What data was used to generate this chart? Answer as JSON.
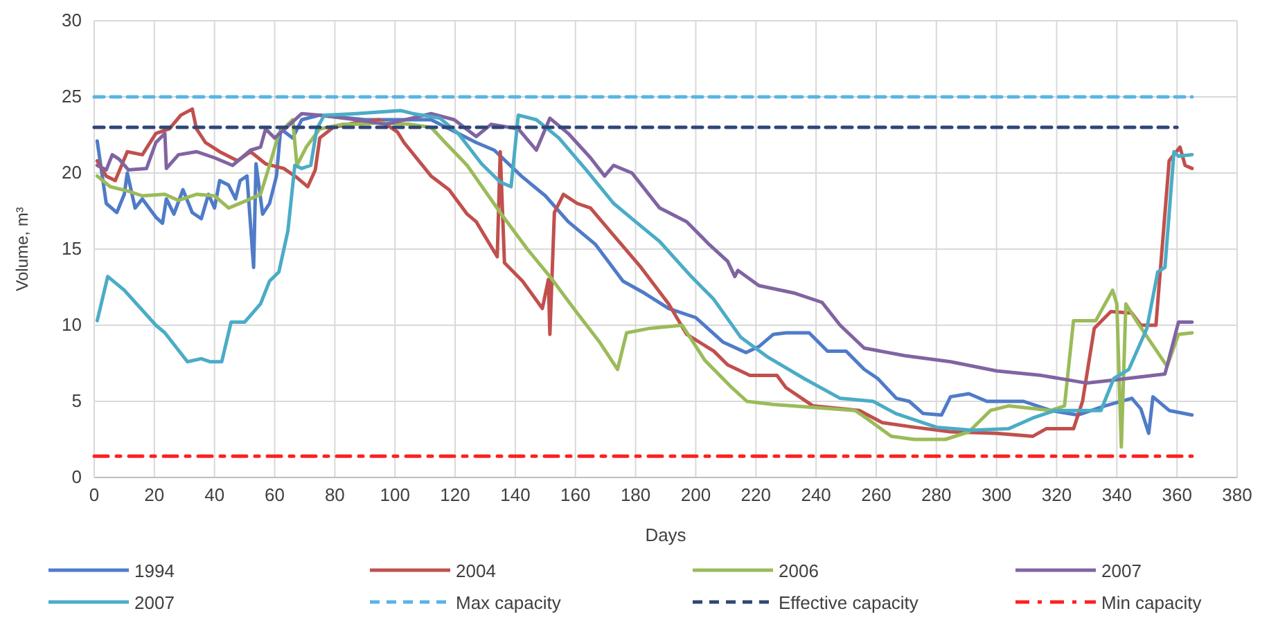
{
  "chart_data": {
    "type": "line",
    "xlabel": "Days",
    "ylabel": "Volume, m³",
    "xlim": [
      0,
      380
    ],
    "ylim": [
      0,
      30
    ],
    "xticks": [
      0,
      20,
      40,
      60,
      80,
      100,
      120,
      140,
      160,
      180,
      200,
      220,
      240,
      260,
      280,
      300,
      320,
      340,
      360,
      380
    ],
    "yticks": [
      0,
      5,
      10,
      15,
      20,
      25,
      30
    ],
    "grid": true,
    "legend": "bottom",
    "marker": "none",
    "series": [
      {
        "name": "1994",
        "color": "#4f7bc8",
        "line_style": "solid",
        "x": [
          1,
          4,
          7.5,
          10,
          11,
          13.6,
          16,
          20.5,
          22.7,
          24,
          26.5,
          29.5,
          32.6,
          35.6,
          38,
          40,
          41.7,
          44.7,
          47,
          48.5,
          50.8,
          53,
          53.8,
          56,
          58.3,
          60.6,
          62,
          66,
          69,
          75,
          90,
          112,
          121,
          127,
          133,
          142,
          150,
          157.6,
          166.7,
          175.8,
          183,
          191,
          200,
          209,
          216.7,
          221,
          225.8,
          230,
          237.7,
          243.8,
          250,
          256,
          260.5,
          266.7,
          271,
          275.6,
          281.7,
          284.7,
          290.8,
          296.8,
          309,
          318,
          327,
          336,
          345,
          348,
          350.6,
          352,
          357.4,
          365
        ],
        "values": [
          22.1,
          18,
          17.4,
          18.6,
          20,
          17.7,
          18.3,
          17.1,
          16.7,
          18.3,
          17.3,
          18.9,
          17.4,
          17,
          18.6,
          17.7,
          19.5,
          19.2,
          18.3,
          19.5,
          19.8,
          13.8,
          20.6,
          17.3,
          18,
          19.8,
          22.9,
          22.3,
          23.5,
          23.8,
          23.5,
          23.5,
          22.6,
          22,
          21.5,
          19.8,
          18.5,
          16.8,
          15.3,
          12.9,
          12.1,
          11.1,
          10.5,
          8.9,
          8.2,
          8.6,
          9.4,
          9.5,
          9.5,
          8.3,
          8.3,
          7.1,
          6.5,
          5.2,
          5,
          4.2,
          4.1,
          5.3,
          5.5,
          5,
          5,
          4.4,
          4.1,
          4.7,
          5.2,
          4.5,
          2.9,
          5.3,
          4.4,
          4.1
        ]
      },
      {
        "name": "2004",
        "color": "#c0504d",
        "line_style": "solid",
        "x": [
          1,
          4,
          7,
          11,
          16,
          20.5,
          25,
          28.8,
          32.6,
          34,
          37,
          41.7,
          47.7,
          52,
          57,
          63,
          67.4,
          71,
          73.5,
          75,
          79.5,
          87,
          94.7,
          100.8,
          103,
          112,
          118,
          124,
          127,
          134,
          135,
          136.4,
          142.4,
          149,
          151,
          151.5,
          153,
          156,
          160.6,
          165,
          172.7,
          181.8,
          191,
          197,
          206,
          210.6,
          218,
          227,
          230,
          239,
          254.4,
          262,
          272.6,
          284.7,
          300,
          312,
          316.5,
          325.6,
          328.6,
          332.5,
          338,
          345,
          348,
          353,
          357.4,
          361,
          362.7,
          365
        ],
        "values": [
          20.8,
          19.8,
          19.5,
          21.4,
          21.2,
          22.6,
          22.9,
          23.8,
          24.2,
          22.9,
          22,
          21.4,
          20.8,
          21.4,
          20.6,
          20.3,
          19.7,
          19.1,
          20.2,
          22.3,
          23,
          23.3,
          23.5,
          22.7,
          22,
          19.8,
          18.9,
          17.3,
          16.8,
          14.5,
          21.4,
          14.1,
          12.9,
          11.1,
          13,
          9.4,
          17.4,
          18.6,
          18,
          17.7,
          15.9,
          13.8,
          11.4,
          9.4,
          8.3,
          7.4,
          6.7,
          6.7,
          5.9,
          4.7,
          4.4,
          3.6,
          3.3,
          3,
          2.9,
          2.7,
          3.2,
          3.2,
          5,
          9.8,
          10.9,
          10.8,
          10,
          10,
          20.8,
          21.7,
          20.5,
          20.3
        ]
      },
      {
        "name": "2006",
        "color": "#9bbb59",
        "line_style": "solid",
        "x": [
          1,
          5.3,
          11.4,
          16,
          23.5,
          28,
          34,
          40,
          44.7,
          50.8,
          55.3,
          58.3,
          61.4,
          66,
          67.4,
          70.5,
          75,
          82.6,
          87,
          94.7,
          105,
          112,
          116.7,
          124,
          135,
          144,
          151.5,
          160.6,
          168,
          174,
          177,
          184.8,
          195.5,
          203,
          212,
          217,
          225.8,
          253,
          257.4,
          265,
          272.6,
          283,
          290.8,
          298,
          304,
          318,
          322.6,
          325.6,
          333,
          338.6,
          340,
          341.5,
          343,
          346.8,
          356.7,
          360.5,
          365
        ],
        "values": [
          19.8,
          19.1,
          18.8,
          18.5,
          18.6,
          18.2,
          18.6,
          18.5,
          17.7,
          18.2,
          18.6,
          20.5,
          22.6,
          23.5,
          20.5,
          21.7,
          22.9,
          23.2,
          23.2,
          23.3,
          23.2,
          23,
          22,
          20.5,
          17.4,
          15,
          13.2,
          10.8,
          8.9,
          7.1,
          9.5,
          9.8,
          10,
          7.7,
          5.9,
          5,
          4.8,
          4.4,
          3.8,
          2.7,
          2.5,
          2.5,
          3,
          4.4,
          4.7,
          4.4,
          4.7,
          10.3,
          10.3,
          12.3,
          11.4,
          2,
          11.4,
          10.2,
          7.3,
          9.4,
          9.5
        ]
      },
      {
        "name": "2007",
        "color": "#8064a2",
        "line_style": "solid",
        "x": [
          1,
          4,
          6,
          8.3,
          11.4,
          17.4,
          20.5,
          23.5,
          24,
          28,
          34,
          40,
          46,
          52,
          55.3,
          57,
          60,
          64,
          69,
          75,
          87,
          97,
          112,
          119.7,
          127,
          132,
          141,
          147,
          151.5,
          157.6,
          165,
          169.7,
          172.7,
          178.8,
          188,
          197,
          204.5,
          210.6,
          213,
          214,
          221,
          233,
          242,
          248,
          256,
          269.5,
          284.7,
          300,
          315,
          330,
          339,
          356,
          360.5,
          365
        ],
        "values": [
          20.5,
          20.2,
          21.2,
          20.9,
          20.2,
          20.3,
          22,
          22.6,
          20.3,
          21.2,
          21.4,
          21,
          20.5,
          21.5,
          21.7,
          22.9,
          22.3,
          23,
          23.9,
          23.8,
          23.5,
          23.2,
          23.9,
          23.5,
          22.4,
          23.2,
          22.9,
          21.5,
          23.6,
          22.6,
          21,
          19.8,
          20.5,
          20,
          17.7,
          16.8,
          15.3,
          14.2,
          13.2,
          13.6,
          12.6,
          12.1,
          11.5,
          10,
          8.5,
          8,
          7.6,
          7,
          6.7,
          6.2,
          6.4,
          6.8,
          10.2,
          10.2
        ]
      },
      {
        "name": "2007",
        "color": "#4bacc6",
        "line_style": "solid",
        "x": [
          1,
          4.5,
          10,
          20.5,
          23.5,
          31,
          35.6,
          38.6,
          42.4,
          45.5,
          50,
          55.3,
          58.3,
          61.4,
          64.4,
          66.7,
          69,
          72,
          74,
          76.5,
          87,
          102,
          106,
          115,
          121,
          128.8,
          135,
          138.6,
          141,
          147,
          154.5,
          163.6,
          172.7,
          180,
          188,
          198.5,
          206,
          215,
          224,
          236,
          248,
          259,
          266.5,
          280,
          292,
          304,
          312,
          319.5,
          334.7,
          339,
          344,
          350,
          353.6,
          356,
          359,
          360.5,
          365
        ],
        "values": [
          10.3,
          13.2,
          12.3,
          10,
          9.5,
          7.6,
          7.8,
          7.6,
          7.6,
          10.2,
          10.2,
          11.4,
          12.9,
          13.5,
          16.2,
          20.5,
          20.3,
          20.5,
          22.9,
          23.8,
          23.9,
          24.1,
          23.9,
          23.6,
          22.6,
          20.6,
          19.4,
          19.1,
          23.8,
          23.5,
          22.3,
          20.2,
          18,
          16.8,
          15.5,
          13.2,
          11.7,
          9.2,
          7.9,
          6.5,
          5.2,
          5,
          4.2,
          3.3,
          3.1,
          3.2,
          3.9,
          4.4,
          4.4,
          6.5,
          7.1,
          9.8,
          13.5,
          13.8,
          21.4,
          21.1,
          21.2
        ]
      },
      {
        "name": "Max capacity",
        "color": "#5ab4e5",
        "line_style": "dashed",
        "x": [
          0,
          365
        ],
        "values": [
          25,
          25
        ]
      },
      {
        "name": "Effective capacity",
        "color": "#2f4676",
        "line_style": "dashed",
        "x": [
          0,
          360
        ],
        "values": [
          23,
          23
        ]
      },
      {
        "name": "Min capacity",
        "color": "#ff1f1f",
        "line_style": "dashdot",
        "x": [
          0,
          365
        ],
        "values": [
          1.4,
          1.4
        ]
      }
    ]
  }
}
